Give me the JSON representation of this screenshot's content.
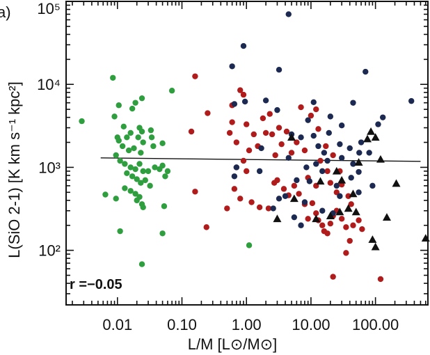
{
  "chart_data": {
    "type": "scatter",
    "panel_label": "a)",
    "xlabel": "L/M [L⊙/M⊙]",
    "ylabel": "L(SiO 2-1) [K km s⁻¹ kpc²]",
    "xscale": "log",
    "yscale": "log",
    "xlim": [
      0.0016,
      650
    ],
    "ylim": [
      22,
      100000
    ],
    "x_ticks": [
      0.01,
      0.1,
      1,
      10,
      100
    ],
    "x_tick_labels": [
      "0.01",
      "0.10",
      "1.00",
      "10.00",
      "100.00"
    ],
    "y_ticks": [
      100,
      1000,
      10000,
      100000
    ],
    "y_tick_labels": [
      "10²",
      "10³",
      "10⁴",
      "10⁵"
    ],
    "annotation": "r =−0.05",
    "grid": false,
    "colors": {
      "green": "#2e9e3e",
      "red": "#b01c1c",
      "navy": "#1c2a52",
      "triangle": "#111111",
      "fit_line": "#111111"
    },
    "fit_line": {
      "x": [
        0.0055,
        500
      ],
      "y": [
        1300,
        1180
      ]
    },
    "series": [
      {
        "marker": "circle",
        "color": "green",
        "points": [
          [
            0.0028,
            3600
          ],
          [
            0.0085,
            12000
          ],
          [
            0.0105,
            5600
          ],
          [
            0.009,
            4100
          ],
          [
            0.0125,
            3100
          ],
          [
            0.014,
            2300
          ],
          [
            0.017,
            5100
          ],
          [
            0.019,
            6000
          ],
          [
            0.024,
            6800
          ],
          [
            0.022,
            3000
          ],
          [
            0.016,
            2600
          ],
          [
            0.0105,
            2100
          ],
          [
            0.012,
            1800
          ],
          [
            0.015,
            1600
          ],
          [
            0.018,
            1700
          ],
          [
            0.023,
            1500
          ],
          [
            0.0095,
            1400
          ],
          [
            0.011,
            1200
          ],
          [
            0.013,
            1100
          ],
          [
            0.016,
            1000
          ],
          [
            0.019,
            950
          ],
          [
            0.022,
            1100
          ],
          [
            0.025,
            900
          ],
          [
            0.03,
            900
          ],
          [
            0.038,
            1000
          ],
          [
            0.045,
            950
          ],
          [
            0.05,
            1050
          ],
          [
            0.06,
            900
          ],
          [
            0.014,
            850
          ],
          [
            0.017,
            780
          ],
          [
            0.02,
            720
          ],
          [
            0.023,
            650
          ],
          [
            0.027,
            700
          ],
          [
            0.032,
            600
          ],
          [
            0.055,
            780
          ],
          [
            0.013,
            560
          ],
          [
            0.016,
            520
          ],
          [
            0.019,
            480
          ],
          [
            0.022,
            440
          ],
          [
            0.02,
            400
          ],
          [
            0.024,
            360
          ],
          [
            0.025,
            330
          ],
          [
            0.053,
            340
          ],
          [
            0.0095,
            420
          ],
          [
            0.0065,
            470
          ],
          [
            0.07,
            8400
          ],
          [
            0.033,
            2800
          ],
          [
            0.025,
            2000
          ],
          [
            0.036,
            1800
          ],
          [
            0.024,
            2700
          ],
          [
            0.034,
            2300
          ],
          [
            0.01,
            2300
          ],
          [
            0.011,
            170
          ],
          [
            0.05,
            160
          ],
          [
            0.024,
            68
          ],
          [
            1.1,
            115
          ],
          [
            0.05,
            1950
          ],
          [
            0.021,
            2300
          ]
        ]
      },
      {
        "marker": "circle",
        "color": "red",
        "points": [
          [
            0.16,
            12500
          ],
          [
            0.25,
            4500
          ],
          [
            0.14,
            2700
          ],
          [
            0.16,
            510
          ],
          [
            0.24,
            190
          ],
          [
            0.5,
            320
          ],
          [
            0.55,
            2600
          ],
          [
            0.6,
            5600
          ],
          [
            0.6,
            3500
          ],
          [
            0.7,
            2000
          ],
          [
            0.8,
            8500
          ],
          [
            0.9,
            7500
          ],
          [
            1.0,
            3300
          ],
          [
            1.0,
            900
          ],
          [
            0.7,
            1000
          ],
          [
            0.9,
            1200
          ],
          [
            1.1,
            1600
          ],
          [
            1.3,
            2500
          ],
          [
            1.5,
            1800
          ],
          [
            1.8,
            3900
          ],
          [
            2.0,
            2600
          ],
          [
            2.3,
            4400
          ],
          [
            2.5,
            2500
          ],
          [
            2.8,
            1400
          ],
          [
            3.2,
            3000
          ],
          [
            3.5,
            1900
          ],
          [
            0.65,
            550
          ],
          [
            0.8,
            420
          ],
          [
            1.2,
            380
          ],
          [
            1.6,
            330
          ],
          [
            2.2,
            320
          ],
          [
            2.7,
            650
          ],
          [
            3.0,
            700
          ],
          [
            3.8,
            550
          ],
          [
            4.5,
            460
          ],
          [
            5.5,
            600
          ],
          [
            6.5,
            480
          ],
          [
            8.0,
            360
          ],
          [
            9.0,
            240
          ],
          [
            10.5,
            370
          ],
          [
            12,
            280
          ],
          [
            13,
            230
          ],
          [
            15,
            200
          ],
          [
            16,
            170
          ],
          [
            18,
            160
          ],
          [
            20,
            210
          ],
          [
            22,
            260
          ],
          [
            25,
            300
          ],
          [
            30,
            240
          ],
          [
            35,
            190
          ],
          [
            40,
            130
          ],
          [
            45,
            200
          ],
          [
            55,
            230
          ],
          [
            62,
            180
          ],
          [
            7,
            5300
          ],
          [
            10,
            4200
          ],
          [
            13,
            2900
          ],
          [
            17,
            1800
          ],
          [
            22,
            1400
          ],
          [
            28,
            900
          ],
          [
            12,
            600
          ],
          [
            9,
            750
          ],
          [
            6,
            2000
          ],
          [
            14,
            1200
          ],
          [
            18,
            900
          ],
          [
            20,
            650
          ],
          [
            30,
            620
          ],
          [
            38,
            450
          ],
          [
            42,
            360
          ],
          [
            25,
            500
          ],
          [
            35,
            93
          ],
          [
            12,
            5000
          ],
          [
            120,
            45
          ],
          [
            22,
            48
          ],
          [
            8,
            1600
          ],
          [
            4.2,
            2700
          ],
          [
            5.0,
            1500
          ]
        ]
      },
      {
        "marker": "circle",
        "color": "navy",
        "points": [
          [
            4.5,
            70000
          ],
          [
            0.9,
            29000
          ],
          [
            0.6,
            16500
          ],
          [
            3.2,
            15000
          ],
          [
            70,
            14200
          ],
          [
            0.65,
            5800
          ],
          [
            0.95,
            6200
          ],
          [
            2.0,
            6400
          ],
          [
            3.0,
            4900
          ],
          [
            11,
            6100
          ],
          [
            45,
            6000
          ],
          [
            360,
            6300
          ],
          [
            9,
            3700
          ],
          [
            20,
            4100
          ],
          [
            30,
            3200
          ],
          [
            5,
            2500
          ],
          [
            7,
            2300
          ],
          [
            11,
            2400
          ],
          [
            13,
            1800
          ],
          [
            19,
            2600
          ],
          [
            28,
            1900
          ],
          [
            40,
            1700
          ],
          [
            56,
            1500
          ],
          [
            4.5,
            1300
          ],
          [
            8.5,
            1000
          ],
          [
            12,
            1100
          ],
          [
            15,
            900
          ],
          [
            18,
            1200
          ],
          [
            30,
            1300
          ],
          [
            42,
            750
          ],
          [
            55,
            880
          ],
          [
            0.7,
            1000
          ],
          [
            1.6,
            900
          ],
          [
            6,
            700
          ],
          [
            4,
            450
          ],
          [
            8,
            380
          ],
          [
            15,
            300
          ],
          [
            25,
            600
          ],
          [
            45,
            1100
          ],
          [
            28,
            450
          ],
          [
            60,
            2000
          ],
          [
            130,
            4000
          ],
          [
            110,
            3300
          ],
          [
            80,
            1500
          ],
          [
            90,
            600
          ],
          [
            2.6,
            320
          ],
          [
            3.2,
            420
          ],
          [
            5.5,
            250
          ],
          [
            7.0,
            200
          ],
          [
            55,
            500
          ],
          [
            9.5,
            680
          ],
          [
            0.65,
            780
          ],
          [
            1.7,
            1700
          ],
          [
            22,
            280
          ],
          [
            16,
            1500
          ]
        ]
      },
      {
        "marker": "triangle",
        "color": "triangle",
        "points": [
          [
            5,
            2300
          ],
          [
            75,
            2200
          ],
          [
            85,
            2700
          ],
          [
            100,
            2300
          ],
          [
            120,
            1250
          ],
          [
            55,
            1150
          ],
          [
            25,
            900
          ],
          [
            30,
            700
          ],
          [
            14,
            680
          ],
          [
            5.5,
            420
          ],
          [
            45,
            480
          ],
          [
            12,
            240
          ],
          [
            20,
            260
          ],
          [
            28,
            290
          ],
          [
            38,
            320
          ],
          [
            50,
            290
          ],
          [
            90,
            135
          ],
          [
            100,
            110
          ],
          [
            150,
            250
          ],
          [
            210,
            640
          ],
          [
            600,
            140
          ],
          [
            3.0,
            240
          ]
        ]
      }
    ]
  }
}
